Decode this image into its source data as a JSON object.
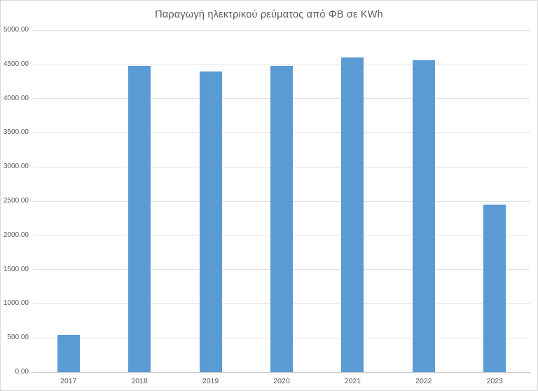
{
  "chart_data": {
    "type": "bar",
    "title": "Παραγωγή ηλεκτρικού ρεύματος από ΦΒ σε KWh",
    "categories": [
      "2017",
      "2018",
      "2019",
      "2020",
      "2021",
      "2022",
      "2023"
    ],
    "values": [
      540,
      4475,
      4400,
      4475,
      4605,
      4560,
      2445
    ],
    "xlabel": "",
    "ylabel": "",
    "ylim": [
      0,
      5000
    ],
    "ytick_step": 500,
    "ytick_labels": [
      "0.00",
      "500.00",
      "1000.00",
      "1500.00",
      "2000.00",
      "2500.00",
      "3000.00",
      "3500.00",
      "4000.00",
      "4500.00",
      "5000.00"
    ],
    "grid": true,
    "legend": false,
    "colors": {
      "bar": "#5B9BD5",
      "gridline": "#e2e2e2",
      "zero_axis": "#c9c9c9",
      "text": "#595959",
      "background": "#ffffff",
      "frame_border": "#d9d9d9"
    }
  }
}
